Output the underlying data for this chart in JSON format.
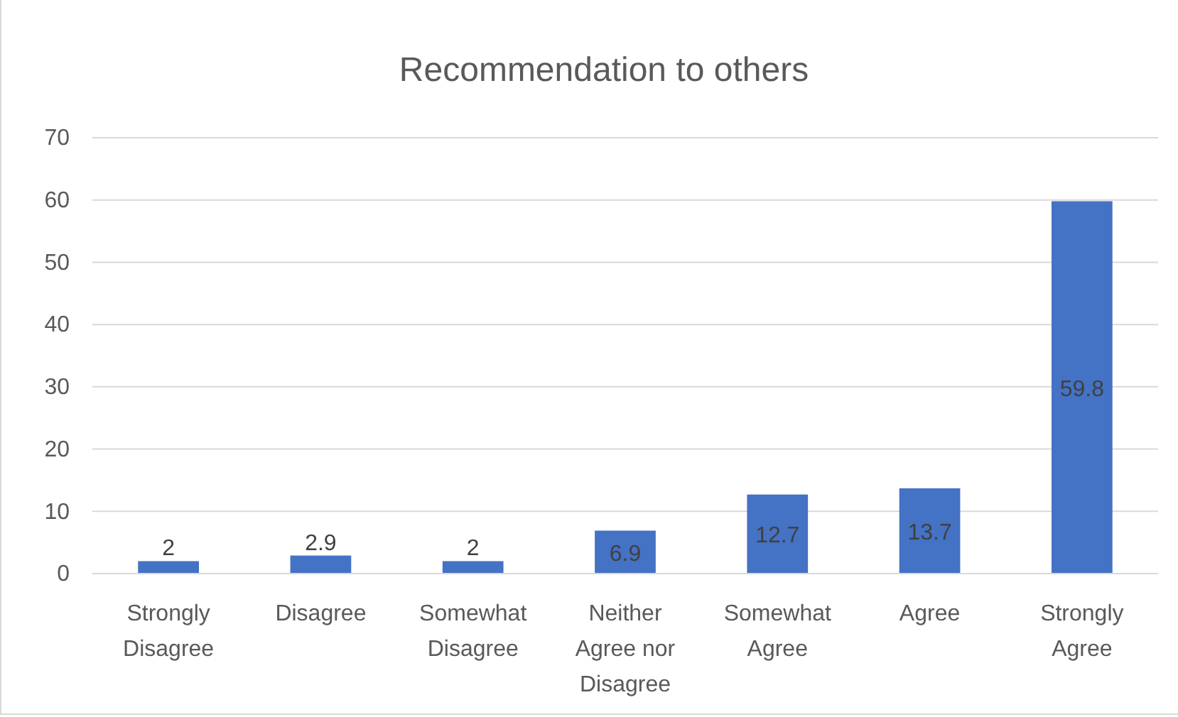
{
  "chart_data": {
    "type": "bar",
    "title": "Recommendation to others",
    "categories": [
      "Strongly Disagree",
      "Disagree",
      "Somewhat Disagree",
      "Neither Agree nor Disagree",
      "Somewhat Agree",
      "Agree",
      "Strongly Agree"
    ],
    "values": [
      2,
      2.9,
      2,
      6.9,
      12.7,
      13.7,
      59.8
    ],
    "color": "#4472c4",
    "ylim": [
      0,
      70
    ],
    "yticks": [
      0,
      10,
      20,
      30,
      40,
      50,
      60,
      70
    ],
    "grid": "y",
    "data_labels": true
  }
}
